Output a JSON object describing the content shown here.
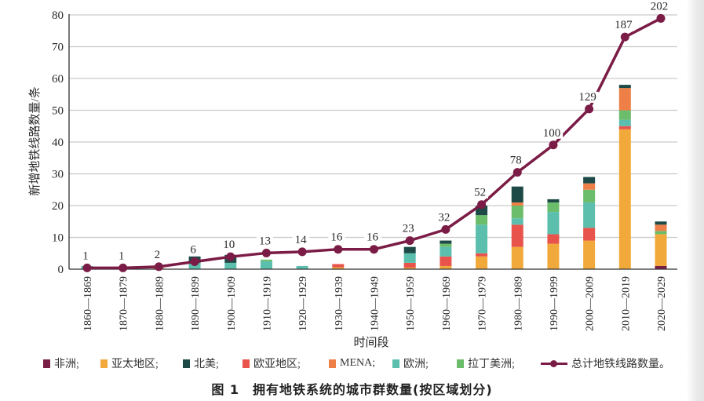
{
  "figure": {
    "caption": "图 1　拥有地铁系统的城市群数量(按区域划分)"
  },
  "chart_data": {
    "type": "bar",
    "subtype": "stacked-bar-with-line",
    "title": "",
    "xlabel": "时间段",
    "ylabel": "新增地铁线路数量/条",
    "ylim": [
      0,
      80
    ],
    "yticks": [
      0,
      10,
      20,
      30,
      40,
      50,
      60,
      70,
      80
    ],
    "grid": true,
    "legend_position": "bottom",
    "categories": [
      "1860—1869",
      "1870—1879",
      "1880—1889",
      "1890—1899",
      "1900—1909",
      "1910—1919",
      "1920—1929",
      "1930—1939",
      "1940—1949",
      "1950—1959",
      "1960—1969",
      "1970—1979",
      "1980—1989",
      "1990—1999",
      "2000—2009",
      "2010—2019",
      "2020—2029"
    ],
    "series": [
      {
        "name": "非洲",
        "legend_label": "非洲;",
        "color": "#7a1e46",
        "values": [
          0,
          0,
          0,
          0,
          0,
          0,
          0,
          0,
          0,
          0,
          0,
          0,
          0,
          0,
          0,
          0,
          1
        ]
      },
      {
        "name": "亚太地区",
        "legend_label": "亚太地区;",
        "color": "#f2a93b",
        "values": [
          0,
          0,
          0.3,
          0,
          0,
          0,
          0,
          0.6,
          0,
          0.5,
          1,
          4,
          7,
          8,
          9,
          44,
          10
        ]
      },
      {
        "name": "北美",
        "legend_label": "北美;",
        "color": "#1d4a46",
        "values": [
          0,
          0,
          0,
          2,
          2.5,
          0,
          0,
          0,
          0,
          2,
          1,
          3,
          5,
          1,
          2,
          1,
          1
        ]
      },
      {
        "name": "欧亚地区",
        "legend_label": "欧亚地区;",
        "color": "#e8534b",
        "values": [
          0,
          0,
          0,
          0,
          0,
          0,
          0,
          1,
          0,
          1.5,
          3,
          1,
          7,
          3,
          4,
          1,
          0
        ]
      },
      {
        "name": "MENA",
        "legend_label": "MENA;",
        "color": "#ee7f46",
        "values": [
          0,
          0,
          0,
          0,
          0,
          0,
          0,
          0,
          0,
          0,
          0,
          0,
          1,
          0,
          2,
          7,
          2
        ]
      },
      {
        "name": "欧洲",
        "legend_label": "欧洲;",
        "color": "#5cbfae",
        "values": [
          1,
          0,
          0,
          2,
          2,
          2.5,
          1,
          0,
          0,
          3,
          3,
          9,
          2,
          7,
          8,
          2,
          0
        ]
      },
      {
        "name": "拉丁美洲",
        "legend_label": "拉丁美洲;",
        "color": "#6cbd6b",
        "values": [
          0,
          0,
          0,
          0,
          0,
          0.5,
          0,
          0,
          0,
          0,
          1,
          3,
          4,
          3,
          4,
          3,
          1
        ]
      }
    ],
    "stack_order": [
      "非洲",
      "亚太地区",
      "欧亚地区",
      "欧洲",
      "拉丁美洲",
      "MENA",
      "北美"
    ],
    "line_series": {
      "name": "总计地铁线路数量",
      "legend_label": "总计地铁线路数量。",
      "color": "#7b1c46",
      "values": [
        1,
        1,
        2,
        6,
        10,
        13,
        14,
        16,
        16,
        23,
        32,
        52,
        78,
        100,
        129,
        187,
        202
      ],
      "plotted_value_divisor": 2.56
    },
    "colors": {
      "grid": "#c9c9c9",
      "axis": "#333333"
    }
  }
}
